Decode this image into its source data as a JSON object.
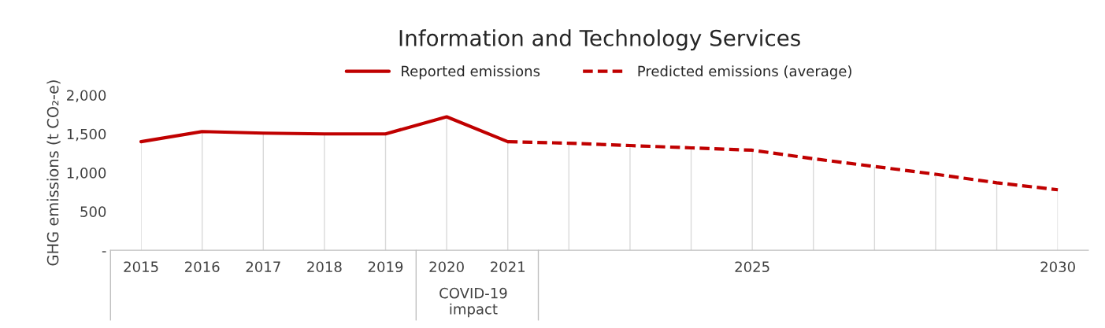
{
  "chart_data": {
    "type": "line",
    "title": "Information and Technology Services",
    "ylabel": "GHG emissions (t CO₂-e)",
    "categories": [
      "2015",
      "2016",
      "2017",
      "2018",
      "2019",
      "2020",
      "2021",
      null,
      null,
      null,
      "2025",
      null,
      null,
      null,
      null,
      "2030"
    ],
    "series": [
      {
        "name": "Reported emissions",
        "color": "#c00000",
        "line_style": "solid",
        "values": [
          1400,
          1530,
          1510,
          1500,
          1500,
          1720,
          1400,
          null,
          null,
          null,
          null,
          null,
          null,
          null,
          null,
          null
        ]
      },
      {
        "name": "Predicted emissions (average)",
        "color": "#c00000",
        "line_style": "dashed",
        "values": [
          null,
          null,
          null,
          null,
          null,
          null,
          1400,
          1380,
          1350,
          1320,
          1290,
          1180,
          1080,
          980,
          870,
          780
        ]
      }
    ],
    "ylim": [
      0,
      2000
    ],
    "yticks": [
      {
        "value": 0,
        "label": "-"
      },
      500,
      {
        "value": 1000,
        "label": "1,000"
      },
      {
        "value": 1500,
        "label": "1,500"
      },
      {
        "value": 2000,
        "label": "2,000"
      }
    ],
    "annotations": [
      "COVID-19\nimpact"
    ],
    "legend": "top",
    "grid": "x",
    "marker": "none"
  }
}
